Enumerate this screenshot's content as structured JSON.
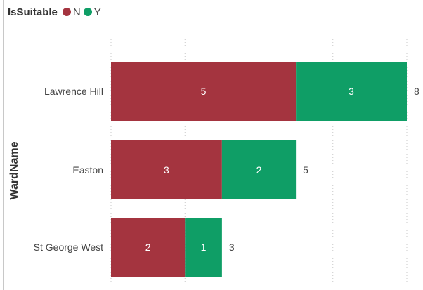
{
  "chart_data": {
    "type": "bar",
    "orientation": "horizontal",
    "stacked": true,
    "legend_title": "IsSuitable",
    "legend_position": "top-left",
    "ylabel": "WardName",
    "xlabel": "",
    "categories": [
      "Lawrence Hill",
      "Easton",
      "St George West"
    ],
    "series": [
      {
        "name": "N",
        "color": "#a4343f",
        "values": [
          5,
          3,
          2
        ]
      },
      {
        "name": "Y",
        "color": "#0f9e66",
        "values": [
          3,
          2,
          1
        ]
      }
    ],
    "totals": [
      8,
      5,
      3
    ],
    "xlim": [
      0,
      8
    ],
    "grid": true,
    "gridline_step": 2
  }
}
